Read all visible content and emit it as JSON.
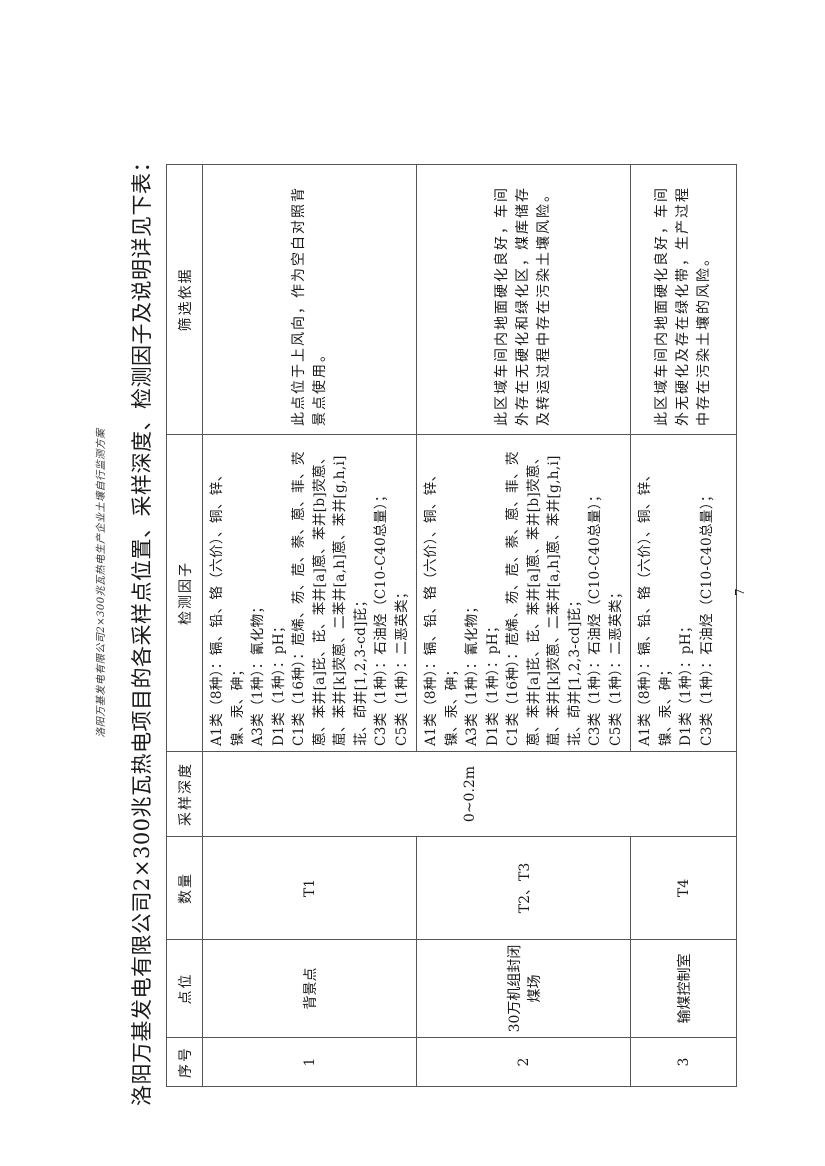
{
  "running_header": "洛阳万基发电有限公司2×300兆瓦热电生产企业土壤自行监测方案",
  "title": "洛阳万基发电有限公司2×300兆瓦热电项目的各采样点位置、采样深度、检测因子及说明详见下表：",
  "table": {
    "headers": [
      "序号",
      "点位",
      "数量",
      "采样深度",
      "检测因子",
      "筛选依据"
    ],
    "depth": "0~0.2m",
    "rows": [
      {
        "no": "1",
        "point": "背景点",
        "count": "T1",
        "factors": [
          "A1类（8种）：镉、铅、铬（六价）、铜、锌、镍、汞、砷；",
          "A3类（1种）：氰化物；",
          "D1类（1种）：pH；",
          "C1类（16种）：苊烯、芴、苊、萘、蒽、菲、荧蒽、苯并[a]芘、芘、苯并[a]蒽、苯并[b]荧蒽、䓛、苯并[k]荧蒽、二苯并[a,h]蒽、苯并[g,h,i]苝、茚并[1,2,3-cd]芘；",
          "C3类（1种）：石油烃（C10-C40总量）；",
          "C5类（1种）：二恶英类；"
        ],
        "basis": "此点位于上风向，作为空白对照背景点使用。"
      },
      {
        "no": "2",
        "point": "30万机组封闭煤场",
        "count": "T2、T3",
        "factors": [
          "A1类（8种）：镉、铅、铬（六价）、铜、锌、镍、汞、砷；",
          "A3类（1种）：氰化物；",
          "D1类（1种）：pH；",
          "C1类（16种）：苊烯、芴、苊、萘、蒽、菲、荧蒽、苯并[a]芘、芘、苯并[a]蒽、苯并[b]荧蒽、䓛、苯并[k]荧蒽、二苯并[a,h]蒽、苯并[g,h,i]苝、茚并[1,2,3-cd]芘；",
          "C3类（1种）：石油烃（C10-C40总量）；",
          "C5类（1种）：二恶英类；"
        ],
        "basis": "此区域车间内地面硬化良好，车间外存在无硬化和绿化区，煤库储存及转运过程中存在污染土壤风险。"
      },
      {
        "no": "3",
        "point": "输煤控制室",
        "count": "T4",
        "factors": [
          "A1类（8种）：镉、铅、铬（六价）、铜、锌、镍、汞、砷；",
          "D1类（1种）：pH；",
          "C3类（1种）：石油烃（C10-C40总量）；"
        ],
        "basis": "此区域车间内地面硬化良好，车间外无硬化及存在绿化带，生产过程中存在污染土壤的风险。"
      }
    ]
  },
  "page_number": "7"
}
